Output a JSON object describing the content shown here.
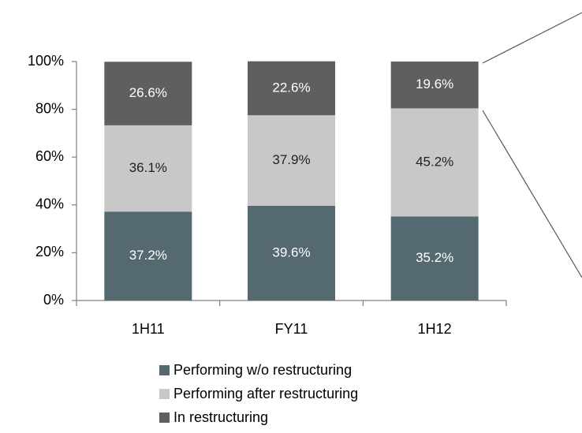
{
  "chart_data": {
    "type": "stacked-bar",
    "categories": [
      "1H11",
      "FY11",
      "1H12"
    ],
    "series": [
      {
        "name": "Performing w/o restructuring",
        "color": "#546a70",
        "values": [
          37.2,
          39.6,
          35.2
        ],
        "value_labels": [
          "37.2%",
          "39.6%",
          "35.2%"
        ]
      },
      {
        "name": "Performing after restructuring",
        "color": "#c8c8c8",
        "values": [
          36.1,
          37.9,
          45.2
        ],
        "value_labels": [
          "36.1%",
          "37.9%",
          "45.2%"
        ]
      },
      {
        "name": "In restructuring",
        "color": "#5f5f5f",
        "values": [
          26.6,
          22.6,
          19.6
        ],
        "value_labels": [
          "26.6%",
          "22.6%",
          "19.6%"
        ]
      }
    ],
    "ylim": [
      0,
      100
    ],
    "yticks": [
      {
        "value": 0,
        "label": "0%"
      },
      {
        "value": 20,
        "label": "20%"
      },
      {
        "value": 40,
        "label": "40%"
      },
      {
        "value": 60,
        "label": "60%"
      },
      {
        "value": 80,
        "label": "80%"
      },
      {
        "value": 100,
        "label": "100%"
      }
    ],
    "legend": "bottom"
  }
}
